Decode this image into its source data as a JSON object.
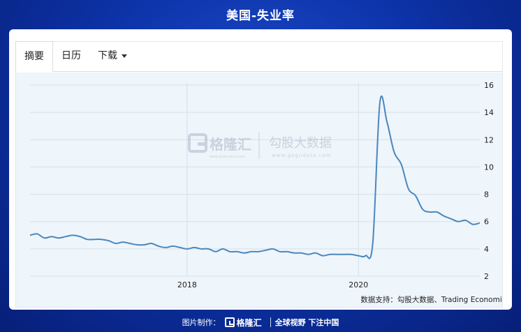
{
  "title": "美国-失业率",
  "tabs": [
    {
      "label": "摘要",
      "active": true
    },
    {
      "label": "日历",
      "active": false
    },
    {
      "label": "下载",
      "active": false
    }
  ],
  "watermark": {
    "brand": "格隆汇",
    "brand_url": "www.gelonghui.com",
    "partner": "勾股大数据",
    "partner_url": "www.gogudata.com"
  },
  "source_note": "数据支持：勾股大数据、Trading Economics",
  "footer": {
    "made_by": "图片制作：",
    "brand": "格隆汇",
    "slogan": "全球视野 下注中国"
  },
  "colors": {
    "line": "#4a87bd",
    "background": "#0d33a8",
    "plot_bg": "#eef5fb"
  },
  "chart_data": {
    "type": "line",
    "title": "",
    "xlabel": "",
    "ylabel": "",
    "ylim": [
      2,
      16
    ],
    "yticks": [
      2,
      4,
      6,
      8,
      10,
      12,
      14,
      16
    ],
    "xticks": [
      {
        "label": "2018",
        "x": "2018-01"
      },
      {
        "label": "2020",
        "x": "2020-01"
      }
    ],
    "xlim": [
      "2016-03",
      "2021-06"
    ],
    "grid": true,
    "y_axis_side": "right",
    "series": [
      {
        "x": [
          "2016-03",
          "2016-04",
          "2016-05",
          "2016-06",
          "2016-07",
          "2016-08",
          "2016-09",
          "2016-10",
          "2016-11",
          "2016-12",
          "2017-01",
          "2017-02",
          "2017-03",
          "2017-04",
          "2017-05",
          "2017-06",
          "2017-07",
          "2017-08",
          "2017-09",
          "2017-10",
          "2017-11",
          "2017-12",
          "2018-01",
          "2018-02",
          "2018-03",
          "2018-04",
          "2018-05",
          "2018-06",
          "2018-07",
          "2018-08",
          "2018-09",
          "2018-10",
          "2018-11",
          "2018-12",
          "2019-01",
          "2019-02",
          "2019-03",
          "2019-04",
          "2019-05",
          "2019-06",
          "2019-07",
          "2019-08",
          "2019-09",
          "2019-10",
          "2019-11",
          "2019-12",
          "2020-01",
          "2020-02",
          "2020-03",
          "2020-04",
          "2020-05",
          "2020-06",
          "2020-07",
          "2020-08",
          "2020-09",
          "2020-10",
          "2020-11",
          "2020-12",
          "2021-01",
          "2021-02",
          "2021-03",
          "2021-04",
          "2021-05",
          "2021-06"
        ],
        "values": [
          5.0,
          5.1,
          4.8,
          4.9,
          4.8,
          4.9,
          5.0,
          4.9,
          4.7,
          4.7,
          4.7,
          4.6,
          4.4,
          4.5,
          4.4,
          4.3,
          4.3,
          4.4,
          4.2,
          4.1,
          4.2,
          4.1,
          4.0,
          4.1,
          4.0,
          4.0,
          3.8,
          4.0,
          3.8,
          3.8,
          3.7,
          3.8,
          3.8,
          3.9,
          4.0,
          3.8,
          3.8,
          3.7,
          3.7,
          3.6,
          3.7,
          3.5,
          3.6,
          3.6,
          3.6,
          3.6,
          3.5,
          3.5,
          4.4,
          14.7,
          13.3,
          11.1,
          10.2,
          8.4,
          7.9,
          6.9,
          6.7,
          6.7,
          6.4,
          6.2,
          6.0,
          6.1,
          5.8,
          5.9
        ]
      }
    ]
  }
}
